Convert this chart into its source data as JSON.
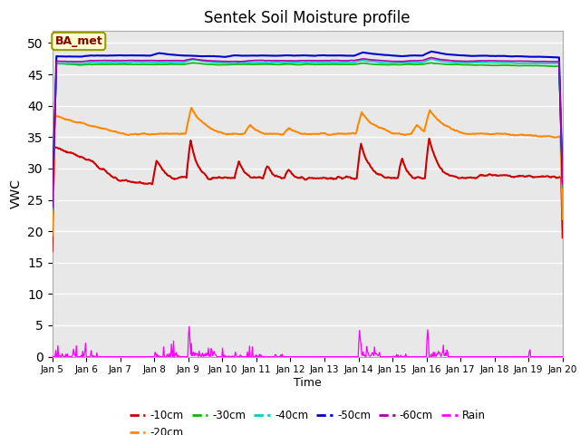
{
  "title": "Sentek Soil Moisture profile",
  "xlabel": "Time",
  "ylabel": "VWC",
  "legend_label": "BA_met",
  "ylim": [
    0,
    52
  ],
  "yticks": [
    0,
    5,
    10,
    15,
    20,
    25,
    30,
    35,
    40,
    45,
    50
  ],
  "colors": {
    "10cm": "#cc0000",
    "20cm": "#ff8800",
    "30cm": "#00bb00",
    "40cm": "#00cccc",
    "50cm": "#0000cc",
    "60cm": "#aa00aa",
    "rain": "#ff00ff"
  },
  "plot_bg_color": "#e8e8e8",
  "fig_bg_color": "#ffffff",
  "tick_labels": [
    "Jan 5",
    "Jan 6",
    "Jan 7",
    "Jan 8",
    "Jan 9",
    "Jan 10",
    "Jan 11",
    "Jan 12",
    "Jan 13",
    "Jan 14",
    "Jan 15",
    "Jan 16",
    "Jan 17",
    "Jan 18",
    "Jan 19",
    "Jan 20"
  ]
}
